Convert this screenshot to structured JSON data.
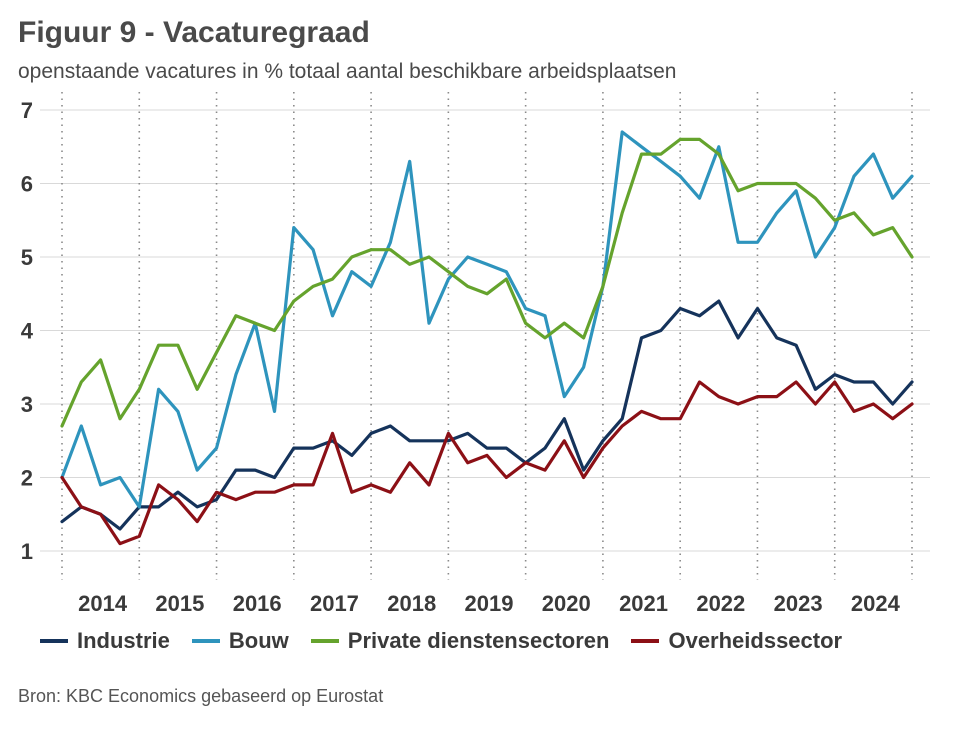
{
  "header": {
    "title": "Figuur 9 - Vacaturegraad",
    "subtitle": "openstaande vacatures in % totaal aantal beschikbare arbeidsplaatsen"
  },
  "source": "Bron: KBC Economics gebaseerd op Eurostat",
  "chart_data": {
    "type": "line",
    "title": "Figuur 9 - Vacaturegraad",
    "subtitle": "openstaande vacatures in % totaal aantal beschikbare arbeidsplaatsen",
    "xlabel": "",
    "ylabel": "",
    "ylim": [
      1,
      7
    ],
    "yticks": [
      "1",
      "2",
      "3",
      "4",
      "5",
      "6",
      "7"
    ],
    "year_labels": [
      "2014",
      "2015",
      "2016",
      "2017",
      "2018",
      "2019",
      "2020",
      "2021",
      "2022",
      "2023",
      "2024"
    ],
    "x": [
      "2013Q4",
      "2014Q1",
      "2014Q2",
      "2014Q3",
      "2014Q4",
      "2015Q1",
      "2015Q2",
      "2015Q3",
      "2015Q4",
      "2016Q1",
      "2016Q2",
      "2016Q3",
      "2016Q4",
      "2017Q1",
      "2017Q2",
      "2017Q3",
      "2017Q4",
      "2018Q1",
      "2018Q2",
      "2018Q3",
      "2018Q4",
      "2019Q1",
      "2019Q2",
      "2019Q3",
      "2019Q4",
      "2020Q1",
      "2020Q2",
      "2020Q3",
      "2020Q4",
      "2021Q1",
      "2021Q2",
      "2021Q3",
      "2021Q4",
      "2022Q1",
      "2022Q2",
      "2022Q3",
      "2022Q4",
      "2023Q1",
      "2023Q2",
      "2023Q3",
      "2023Q4",
      "2024Q1",
      "2024Q2",
      "2024Q3",
      "2024Q4"
    ],
    "grid": true,
    "legend_position": "bottom",
    "series": [
      {
        "name": "Industrie",
        "color": "#15335b",
        "values": [
          1.4,
          1.6,
          1.5,
          1.3,
          1.6,
          1.6,
          1.8,
          1.6,
          1.7,
          2.1,
          2.1,
          2.0,
          2.4,
          2.4,
          2.5,
          2.3,
          2.6,
          2.7,
          2.5,
          2.5,
          2.5,
          2.6,
          2.4,
          2.4,
          2.2,
          2.4,
          2.8,
          2.1,
          2.5,
          2.8,
          3.9,
          4.0,
          4.3,
          4.2,
          4.4,
          3.9,
          4.3,
          3.9,
          3.8,
          3.2,
          3.4,
          3.3,
          3.3,
          3.0,
          3.3
        ]
      },
      {
        "name": "Bouw",
        "color": "#2e94bd",
        "values": [
          2.0,
          2.7,
          1.9,
          2.0,
          1.6,
          3.2,
          2.9,
          2.1,
          2.4,
          3.4,
          4.1,
          2.9,
          5.4,
          5.1,
          4.2,
          4.8,
          4.6,
          5.2,
          6.3,
          4.1,
          4.7,
          5.0,
          4.9,
          4.8,
          4.3,
          4.2,
          3.1,
          3.5,
          4.6,
          6.7,
          6.5,
          6.3,
          6.1,
          5.8,
          6.5,
          5.2,
          5.2,
          5.6,
          5.9,
          5.0,
          5.4,
          6.1,
          6.4,
          5.8,
          6.1
        ]
      },
      {
        "name": "Private dienstensectoren",
        "color": "#65a32d",
        "values": [
          2.7,
          3.3,
          3.6,
          2.8,
          3.2,
          3.8,
          3.8,
          3.2,
          3.7,
          4.2,
          4.1,
          4.0,
          4.4,
          4.6,
          4.7,
          5.0,
          5.1,
          5.1,
          4.9,
          5.0,
          4.8,
          4.6,
          4.5,
          4.7,
          4.1,
          3.9,
          4.1,
          3.9,
          4.6,
          5.6,
          6.4,
          6.4,
          6.6,
          6.6,
          6.4,
          5.9,
          6.0,
          6.0,
          6.0,
          5.8,
          5.5,
          5.6,
          5.3,
          5.4,
          5.0
        ]
      },
      {
        "name": "Overheidssector",
        "color": "#8c1016",
        "values": [
          2.0,
          1.6,
          1.5,
          1.1,
          1.2,
          1.9,
          1.7,
          1.4,
          1.8,
          1.7,
          1.8,
          1.8,
          1.9,
          1.9,
          2.6,
          1.8,
          1.9,
          1.8,
          2.2,
          1.9,
          2.6,
          2.2,
          2.3,
          2.0,
          2.2,
          2.1,
          2.5,
          2.0,
          2.4,
          2.7,
          2.9,
          2.8,
          2.8,
          3.3,
          3.1,
          3.0,
          3.1,
          3.1,
          3.3,
          3.0,
          3.3,
          2.9,
          3.0,
          2.8,
          3.0
        ]
      }
    ]
  }
}
